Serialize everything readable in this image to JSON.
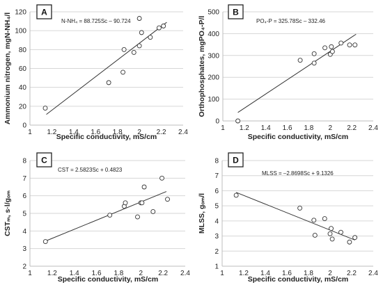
{
  "chart_data": [
    {
      "type": "scatter",
      "panel_label": "A",
      "equation": "N-NH₄ = 88.725Sc – 90.724",
      "xlabel": "Specific conductivity, mS/cm",
      "ylabel": "Ammonium nitrogen, mgN-NH₄/l",
      "xlim": [
        1,
        2.4
      ],
      "ylim": [
        0,
        120
      ],
      "x_ticks": [
        "1",
        "1.2",
        "1.4",
        "1.6",
        "1.8",
        "2",
        "2.2",
        "2.4"
      ],
      "y_ticks": [
        "0",
        "20",
        "40",
        "60",
        "80",
        "100",
        "120"
      ],
      "grid": true,
      "points": [
        {
          "x": 1.14,
          "y": 18
        },
        {
          "x": 1.72,
          "y": 45
        },
        {
          "x": 1.85,
          "y": 56
        },
        {
          "x": 1.86,
          "y": 80
        },
        {
          "x": 1.95,
          "y": 77
        },
        {
          "x": 2.0,
          "y": 84
        },
        {
          "x": 2.0,
          "y": 113
        },
        {
          "x": 2.02,
          "y": 98
        },
        {
          "x": 2.1,
          "y": 93
        },
        {
          "x": 2.18,
          "y": 103
        },
        {
          "x": 2.22,
          "y": 105
        }
      ],
      "trendline": {
        "slope": 88.725,
        "intercept": -90.724,
        "x_range": [
          1.15,
          2.25
        ]
      }
    },
    {
      "type": "scatter",
      "panel_label": "B",
      "equation": "PO₄-P = 325.78Sc – 332.46",
      "xlabel": "Specific conductivity, mS/cm",
      "ylabel": "Orthophosphates, mgPO₄-P/l",
      "xlim": [
        1,
        2.4
      ],
      "ylim": [
        0,
        500
      ],
      "x_ticks": [
        "1",
        "1.2",
        "1.4",
        "1.6",
        "1.8",
        "2",
        "2.2",
        "2.4"
      ],
      "y_ticks": [
        "0",
        "100",
        "200",
        "300",
        "400",
        "500"
      ],
      "grid": true,
      "points": [
        {
          "x": 1.14,
          "y": 0
        },
        {
          "x": 1.72,
          "y": 278
        },
        {
          "x": 1.85,
          "y": 265
        },
        {
          "x": 1.85,
          "y": 308
        },
        {
          "x": 1.95,
          "y": 335
        },
        {
          "x": 2.0,
          "y": 305
        },
        {
          "x": 2.01,
          "y": 340
        },
        {
          "x": 2.02,
          "y": 318
        },
        {
          "x": 2.1,
          "y": 357
        },
        {
          "x": 2.18,
          "y": 348
        },
        {
          "x": 2.23,
          "y": 348
        }
      ],
      "trendline": {
        "slope": 325.78,
        "intercept": -332.46,
        "x_range": [
          1.14,
          2.24
        ]
      }
    },
    {
      "type": "scatter",
      "panel_label": "C",
      "equation": "CST = 2.5823Sc + 0.4823",
      "xlabel": "Specific conductivity, mS/cm",
      "ylabel": "CSTₘ, s·l/gₒₘ",
      "xlim": [
        1,
        2.4
      ],
      "ylim": [
        2,
        8
      ],
      "x_ticks": [
        "1",
        "1.2",
        "1.4",
        "1.6",
        "1.8",
        "2",
        "2.2",
        "2.4"
      ],
      "y_ticks": [
        "2",
        "3",
        "4",
        "5",
        "6",
        "7",
        "8"
      ],
      "grid": true,
      "points": [
        {
          "x": 1.14,
          "y": 3.4
        },
        {
          "x": 1.72,
          "y": 4.9
        },
        {
          "x": 1.85,
          "y": 5.4
        },
        {
          "x": 1.86,
          "y": 5.6
        },
        {
          "x": 1.97,
          "y": 4.8
        },
        {
          "x": 2.0,
          "y": 5.6
        },
        {
          "x": 2.01,
          "y": 5.6
        },
        {
          "x": 2.03,
          "y": 6.5
        },
        {
          "x": 2.11,
          "y": 5.1
        },
        {
          "x": 2.19,
          "y": 7.0
        },
        {
          "x": 2.24,
          "y": 5.8
        }
      ],
      "trendline": {
        "slope": 2.5823,
        "intercept": 0.4823,
        "x_range": [
          1.14,
          2.23
        ]
      }
    },
    {
      "type": "scatter",
      "panel_label": "D",
      "equation": "MLSS = –2.8698Sc + 9.1326",
      "xlabel": "Specific conductivity, mS/cm",
      "ylabel": "MLSS, gₒₘ/l",
      "xlim": [
        1,
        2.4
      ],
      "ylim": [
        1,
        8
      ],
      "x_ticks": [
        "1",
        "1.2",
        "1.4",
        "1.6",
        "1.8",
        "2",
        "2.2",
        "2.4"
      ],
      "y_ticks": [
        "1",
        "2",
        "3",
        "4",
        "5",
        "6",
        "7",
        "8"
      ],
      "grid": true,
      "points": [
        {
          "x": 1.13,
          "y": 5.7
        },
        {
          "x": 1.72,
          "y": 4.85
        },
        {
          "x": 1.85,
          "y": 4.05
        },
        {
          "x": 1.86,
          "y": 3.05
        },
        {
          "x": 1.95,
          "y": 4.15
        },
        {
          "x": 2.0,
          "y": 3.15
        },
        {
          "x": 2.01,
          "y": 3.5
        },
        {
          "x": 2.02,
          "y": 2.8
        },
        {
          "x": 2.1,
          "y": 3.25
        },
        {
          "x": 2.18,
          "y": 2.6
        },
        {
          "x": 2.23,
          "y": 2.9
        }
      ],
      "trendline": {
        "slope": -2.8698,
        "intercept": 9.1326,
        "x_range": [
          1.13,
          2.23
        ]
      }
    }
  ]
}
